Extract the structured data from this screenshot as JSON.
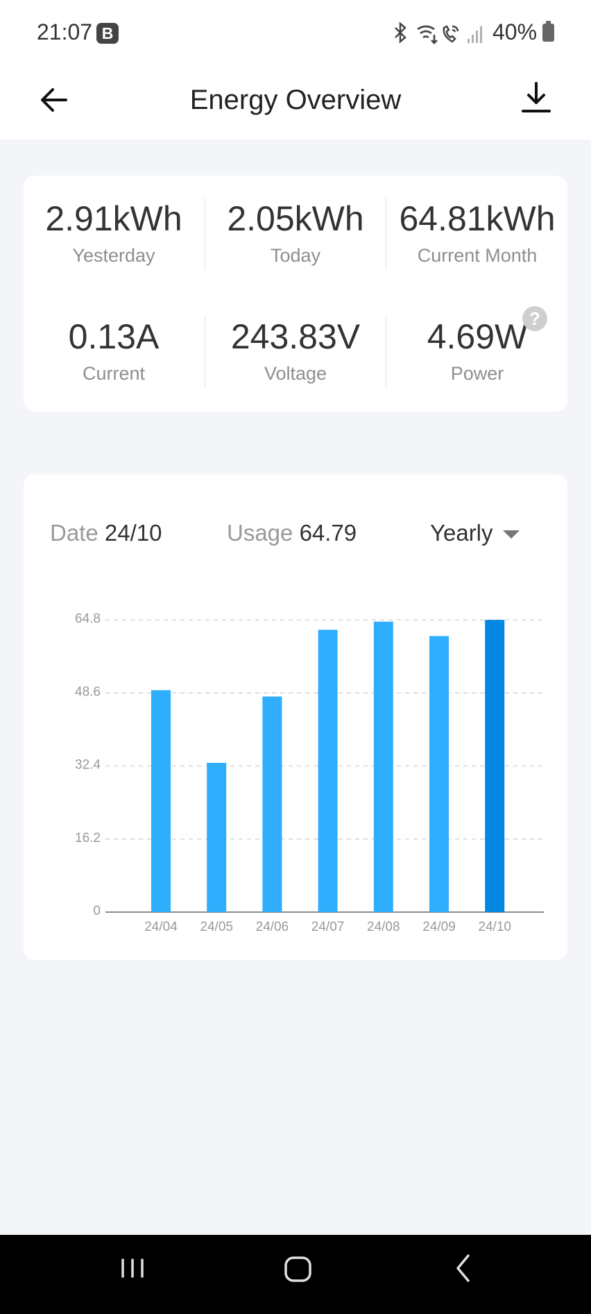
{
  "status_bar": {
    "time": "21:07",
    "badge": "B",
    "battery": "40%",
    "icons": [
      "bluetooth-icon",
      "wifi-icon",
      "wifi-calling-icon",
      "signal-icon",
      "battery-icon"
    ]
  },
  "header": {
    "title": "Energy Overview",
    "back_icon": "arrow-left-icon",
    "download_icon": "download-icon"
  },
  "stats": [
    {
      "value": "2.91kWh",
      "label": "Yesterday"
    },
    {
      "value": "2.05kWh",
      "label": "Today"
    },
    {
      "value": "64.81kWh",
      "label": "Current Month"
    },
    {
      "value": "0.13A",
      "label": "Current"
    },
    {
      "value": "243.83V",
      "label": "Voltage"
    },
    {
      "value": "4.69W",
      "label": "Power"
    }
  ],
  "help_icon": "?",
  "filters": {
    "date_label": "Date",
    "date_value": "24/10",
    "usage_label": "Usage",
    "usage_value": "64.79",
    "period": "Yearly"
  },
  "chart_data": {
    "type": "bar",
    "categories": [
      "24/04",
      "24/05",
      "24/06",
      "24/07",
      "24/08",
      "24/09",
      "24/10"
    ],
    "values": [
      49.2,
      33.1,
      47.8,
      62.6,
      64.4,
      61.2,
      64.79
    ],
    "yticks": [
      "0",
      "16.2",
      "32.4",
      "48.6",
      "64.8"
    ],
    "ylim": [
      0,
      64.8
    ],
    "highlight_index": 6,
    "colors": {
      "bar": "#2eaefd",
      "bar_selected": "#0288e0",
      "grid": "#d6d6d6",
      "axis": "#999999"
    },
    "grid": true
  },
  "nav_bar": {
    "buttons": [
      "recent-apps-icon",
      "home-icon",
      "back-icon"
    ]
  }
}
